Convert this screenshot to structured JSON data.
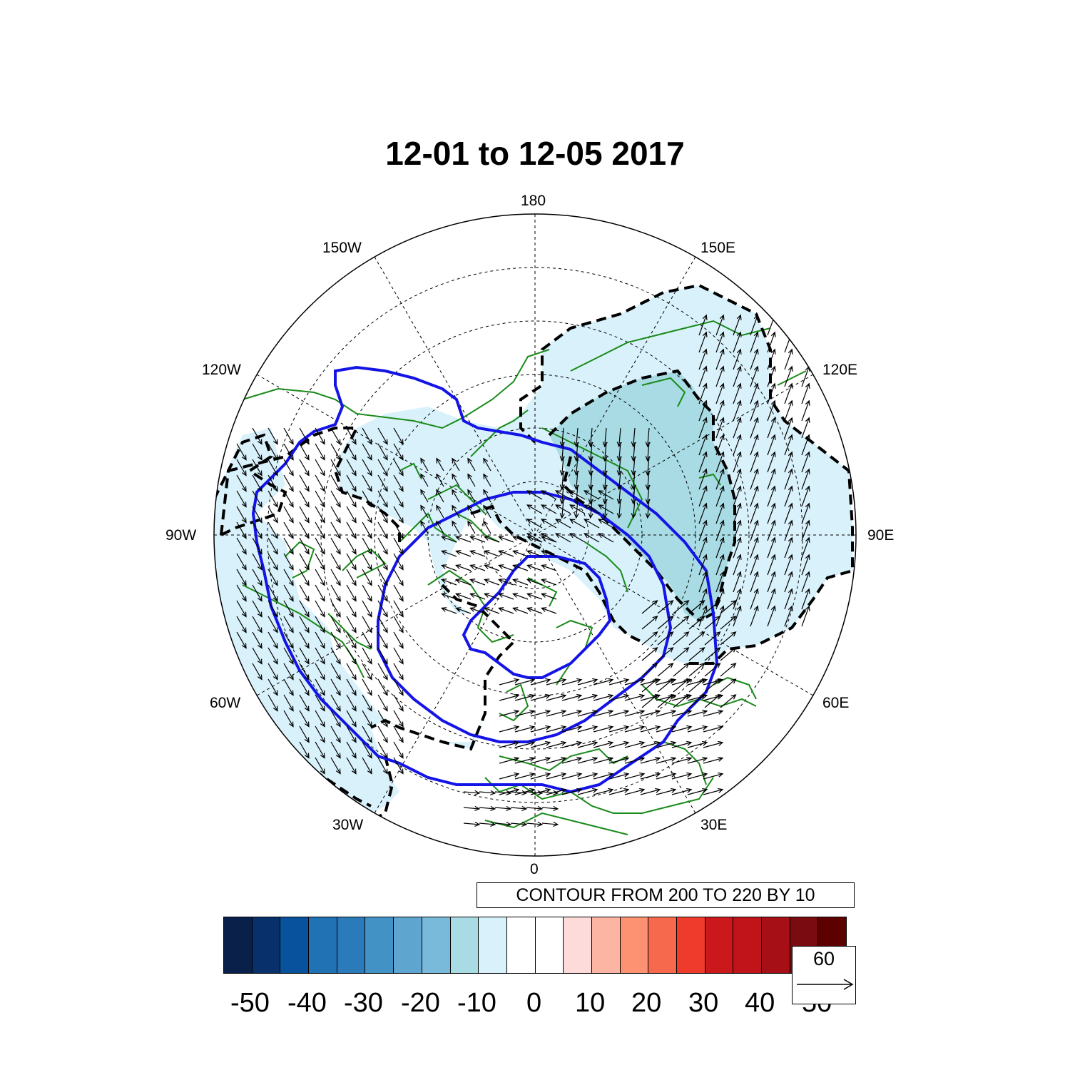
{
  "title": "12-01 to 12-05 2017",
  "longitude_labels": [
    "180",
    "150E",
    "120E",
    "90E",
    "60E",
    "30E",
    "0",
    "30W",
    "60W",
    "90W",
    "120W",
    "150W"
  ],
  "contour_info": "CONTOUR FROM 200 TO 220 BY 10",
  "colorbar": {
    "colors": [
      "#08204a",
      "#08306b",
      "#08519c",
      "#2171b5",
      "#2b7bba",
      "#4292c6",
      "#5ea5cf",
      "#79b9d9",
      "#a8dbe4",
      "#d8f1fa",
      "#ffffff",
      "#ffffff",
      "#fddbdb",
      "#fcb5a3",
      "#fc9272",
      "#f6694c",
      "#ef3b2c",
      "#cb181d",
      "#c0141a",
      "#a50f15",
      "#7a0c11",
      "#5c0000"
    ],
    "labels": [
      "-50",
      "-40",
      "-30",
      "-20",
      "-10",
      "0",
      "10",
      "20",
      "30",
      "40",
      "50"
    ]
  },
  "reference_vector": {
    "label": "60"
  },
  "colors": {
    "contour_line": "#1414e6",
    "coastline": "#1a8a1a",
    "shade_light": "#d8f1fa",
    "shade_medium": "#a8dbe4"
  }
}
